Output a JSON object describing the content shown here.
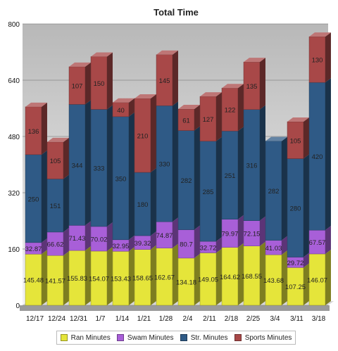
{
  "chart_data": {
    "type": "bar",
    "stacked": true,
    "title": "Total Time",
    "categories": [
      "12/17",
      "12/24",
      "12/31",
      "1/7",
      "1/14",
      "1/21",
      "1/28",
      "2/4",
      "2/11",
      "2/18",
      "2/25",
      "3/4",
      "3/11",
      "3/18"
    ],
    "series": [
      {
        "name": "Ran Minutes",
        "color": "#e5e53a",
        "values": [
          145.48,
          141.57,
          155.83,
          154.07,
          153.43,
          158.65,
          162.67,
          134.18,
          149.05,
          164.62,
          168.55,
          143.68,
          107.25,
          146.07
        ]
      },
      {
        "name": "Swam Minutes",
        "color": "#a85fd8",
        "values": [
          32.87,
          66.62,
          71.43,
          70.02,
          32.95,
          39.32,
          74.87,
          80.7,
          32.72,
          79.97,
          72.15,
          41.03,
          29.72,
          67.57
        ]
      },
      {
        "name": "Str. Minutes",
        "color": "#2f5a86",
        "values": [
          250,
          151,
          344,
          333,
          350,
          180,
          330,
          282,
          285,
          251,
          316,
          282,
          280,
          420
        ]
      },
      {
        "name": "Sports Minutes",
        "color": "#a84848",
        "values": [
          136,
          105,
          107,
          150,
          40,
          210,
          145,
          61,
          127,
          122,
          135,
          0,
          105,
          130
        ]
      }
    ],
    "labels": {
      "Ran Minutes": [
        "145.48",
        "141.57",
        "155.83",
        "154.07",
        "153.43",
        "158.65",
        "162.67",
        "134.18",
        "149.05",
        "164.62",
        "168.55",
        "143.68",
        "107.25",
        "146.07"
      ],
      "Swam Minutes": [
        "32.87",
        "66.62",
        "71.43",
        "70.02",
        "32.95",
        "39.32",
        "74.87",
        "80.7",
        "32.72",
        "79.97",
        "72.15",
        "41.03",
        "29.72",
        "67.57"
      ],
      "Str. Minutes": [
        "250",
        "151",
        "344",
        "333",
        "350",
        "180",
        "330",
        "282",
        "285",
        "251",
        "316",
        "282",
        "280",
        "420"
      ],
      "Sports Minutes": [
        "136",
        "105",
        "107",
        "150",
        "40",
        "210",
        "145",
        "61",
        "127",
        "122",
        "135",
        "",
        "105",
        "130"
      ]
    },
    "yticks": [
      "0",
      "160",
      "320",
      "480",
      "640",
      "800"
    ],
    "ylim": [
      0,
      800
    ],
    "grid": true,
    "legend": "bottom"
  }
}
